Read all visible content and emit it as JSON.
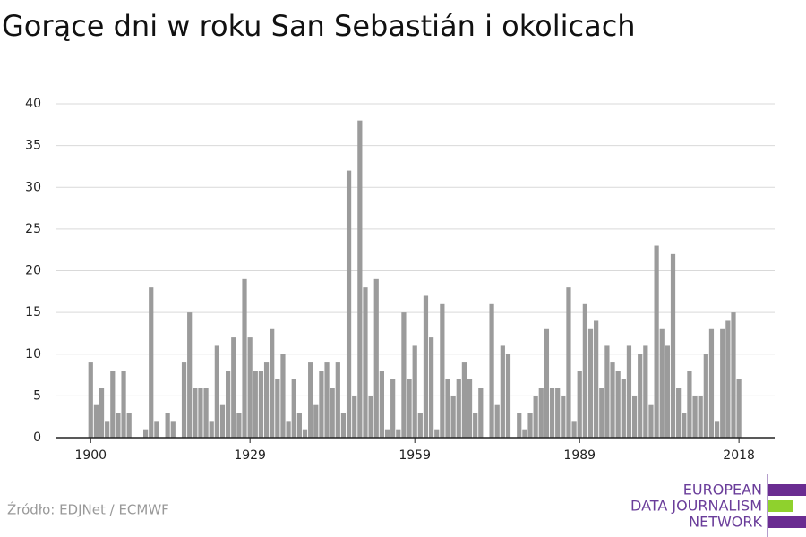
{
  "chart_data": {
    "type": "bar",
    "title": "Gorące dni w roku San Sebastián i okolicach",
    "x": [
      1900,
      1901,
      1902,
      1903,
      1904,
      1905,
      1906,
      1907,
      1908,
      1909,
      1910,
      1911,
      1912,
      1913,
      1914,
      1915,
      1916,
      1917,
      1918,
      1919,
      1920,
      1921,
      1922,
      1923,
      1924,
      1925,
      1926,
      1927,
      1928,
      1929,
      1930,
      1931,
      1932,
      1933,
      1934,
      1935,
      1936,
      1937,
      1938,
      1939,
      1940,
      1941,
      1942,
      1943,
      1944,
      1945,
      1946,
      1947,
      1948,
      1949,
      1950,
      1951,
      1952,
      1953,
      1954,
      1955,
      1956,
      1957,
      1958,
      1959,
      1960,
      1961,
      1962,
      1963,
      1964,
      1965,
      1966,
      1967,
      1968,
      1969,
      1970,
      1971,
      1972,
      1973,
      1974,
      1975,
      1976,
      1977,
      1978,
      1979,
      1980,
      1981,
      1982,
      1983,
      1984,
      1985,
      1986,
      1987,
      1988,
      1989,
      1990,
      1991,
      1992,
      1993,
      1994,
      1995,
      1996,
      1997,
      1998,
      1999,
      2000,
      2001,
      2002,
      2003,
      2004,
      2005,
      2006,
      2007,
      2008,
      2009,
      2010,
      2011,
      2012,
      2013,
      2014,
      2015,
      2016,
      2017,
      2018
    ],
    "values": [
      9,
      4,
      6,
      2,
      8,
      3,
      8,
      3,
      0,
      0,
      1,
      18,
      2,
      0,
      3,
      2,
      0,
      9,
      15,
      6,
      6,
      6,
      2,
      11,
      4,
      8,
      12,
      3,
      19,
      12,
      8,
      8,
      9,
      13,
      7,
      10,
      2,
      7,
      3,
      1,
      9,
      4,
      8,
      9,
      6,
      9,
      3,
      32,
      5,
      38,
      18,
      5,
      19,
      8,
      1,
      7,
      1,
      15,
      7,
      11,
      3,
      17,
      12,
      1,
      16,
      7,
      5,
      7,
      9,
      7,
      3,
      6,
      0,
      16,
      4,
      11,
      10,
      0,
      3,
      1,
      3,
      5,
      6,
      13,
      6,
      6,
      5,
      18,
      2,
      8,
      16,
      13,
      14,
      6,
      11,
      9,
      8,
      7,
      11,
      5,
      10,
      11,
      4,
      23,
      13,
      11,
      22,
      6,
      3,
      8,
      5,
      5,
      10,
      13,
      2,
      13,
      14,
      15,
      7
    ],
    "color": "#9b9b9b",
    "xlim": [
      1893.6,
      2024.5
    ],
    "xticks": [
      1900,
      1929,
      1959,
      1989,
      2018
    ],
    "ylim": [
      0,
      40
    ],
    "yticks": [
      0,
      5,
      10,
      15,
      20,
      25,
      30,
      35,
      40
    ],
    "grid": true
  },
  "footer": {
    "source": "Źródło: EDJNet / ECMWF",
    "logo": [
      "EUROPEAN",
      "DATA JOURNALISM",
      "NETWORK"
    ]
  }
}
